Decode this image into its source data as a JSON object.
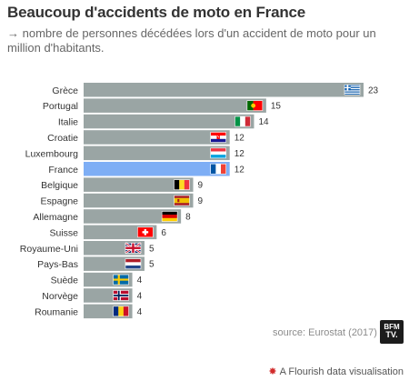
{
  "title": "Beaucoup d'accidents de moto en France",
  "subtitle": "→ nombre de personnes décédées lors d'un accident de moto pour un million d'habitants.",
  "source": "source: Eurostat (2017)",
  "logo": {
    "line1": "BFM",
    "line2": "TV."
  },
  "footer": "A Flourish data visualisation",
  "colors": {
    "bar": "#9aa5a4",
    "highlight": "#7eaef5",
    "background": "#ffffff"
  },
  "chart_data": {
    "type": "bar",
    "orientation": "horizontal",
    "categories": [
      "Grèce",
      "Portugal",
      "Italie",
      "Croatie",
      "Luxembourg",
      "France",
      "Belgique",
      "Espagne",
      "Allemagne",
      "Suisse",
      "Royaume-Uni",
      "Pays-Bas",
      "Suède",
      "Norvège",
      "Roumanie"
    ],
    "values": [
      23,
      15,
      14,
      12,
      12,
      12,
      9,
      9,
      8,
      6,
      5,
      5,
      4,
      4,
      4
    ],
    "flags": [
      "greece-flag",
      "portugal-flag",
      "italy-flag",
      "croatia-flag",
      "luxembourg-flag",
      "france-flag",
      "belgium-flag",
      "spain-flag",
      "germany-flag",
      "switzerland-flag",
      "uk-flag",
      "netherlands-flag",
      "sweden-flag",
      "norway-flag",
      "romania-flag"
    ],
    "highlight": "France",
    "xlim": [
      0,
      23
    ],
    "grid": false,
    "legend": "none"
  }
}
